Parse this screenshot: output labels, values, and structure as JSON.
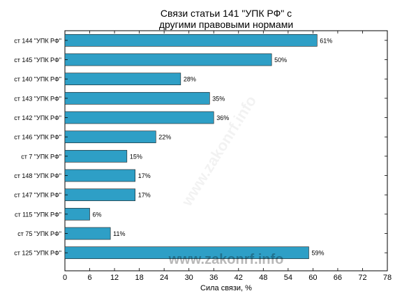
{
  "chart_data": {
    "type": "bar",
    "orientation": "horizontal",
    "title_lines": [
      "Связи статьи 141 \"УПК РФ\" с",
      "другими правовыми нормами"
    ],
    "xlabel": "Сила связи, %",
    "ylabel": "",
    "xlim": [
      0,
      78
    ],
    "xticks": [
      0,
      6,
      12,
      18,
      24,
      30,
      36,
      42,
      48,
      54,
      60,
      66,
      72,
      78
    ],
    "grid": false,
    "bar_color": "#2e9fc6",
    "bar_edge_color": "#1b1b1b",
    "value_suffix": "%",
    "categories": [
      "ст 144 \"УПК РФ\"",
      "ст 145 \"УПК РФ\"",
      "ст 140 \"УПК РФ\"",
      "ст 143 \"УПК РФ\"",
      "ст 142 \"УПК РФ\"",
      "ст 146 \"УПК РФ\"",
      "ст 7 \"УПК РФ\"",
      "ст 148 \"УПК РФ\"",
      "ст 147 \"УПК РФ\"",
      "ст 115 \"УПК РФ\"",
      "ст 75 \"УПК РФ\"",
      "ст 125 \"УПК РФ\""
    ],
    "values": [
      61,
      50,
      28,
      35,
      36,
      22,
      15,
      17,
      17,
      6,
      11,
      59
    ]
  },
  "watermark": "www.zakonrf.info",
  "watermark_diagonal": "www.zakonrf.info"
}
